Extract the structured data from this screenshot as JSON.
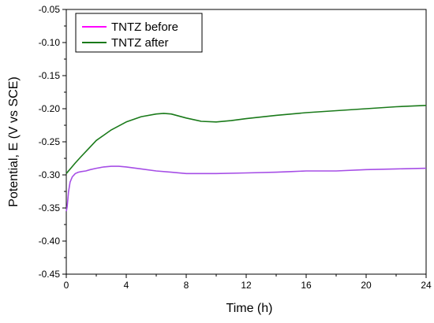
{
  "chart_data": {
    "type": "line",
    "title": "",
    "xlabel": "Time (h)",
    "ylabel": "Potential, E (V vs SCE)",
    "xlim": [
      0,
      24
    ],
    "ylim": [
      -0.45,
      -0.05
    ],
    "xticks": [
      0,
      4,
      8,
      12,
      16,
      20,
      24
    ],
    "xtick_labels": [
      "0",
      "4",
      "8",
      "12",
      "16",
      "20",
      "24"
    ],
    "yticks": [
      -0.45,
      -0.4,
      -0.35,
      -0.3,
      -0.25,
      -0.2,
      -0.15,
      -0.1,
      -0.05
    ],
    "ytick_labels": [
      "-0.45",
      "-0.40",
      "-0.35",
      "-0.30",
      "-0.25",
      "-0.20",
      "-0.15",
      "-0.10",
      "-0.05"
    ],
    "grid": false,
    "legend_position": "top-left",
    "series": [
      {
        "name": "TNTZ before",
        "legend_color": "#ff00ff",
        "color": "#a64ee6",
        "x": [
          0,
          0.05,
          0.1,
          0.15,
          0.25,
          0.4,
          0.6,
          0.8,
          1.0,
          1.3,
          1.6,
          2.0,
          2.5,
          3.0,
          3.5,
          4.0,
          5.0,
          6.0,
          7.0,
          8.0,
          9.0,
          10.0,
          12.0,
          14.0,
          15.0,
          16.0,
          17.0,
          18.0,
          20.0,
          22.0,
          24.0
        ],
        "y": [
          -0.355,
          -0.349,
          -0.338,
          -0.326,
          -0.311,
          -0.303,
          -0.298,
          -0.296,
          -0.295,
          -0.294,
          -0.292,
          -0.29,
          -0.288,
          -0.287,
          -0.287,
          -0.288,
          -0.291,
          -0.294,
          -0.296,
          -0.298,
          -0.298,
          -0.298,
          -0.297,
          -0.296,
          -0.295,
          -0.294,
          -0.294,
          -0.294,
          -0.292,
          -0.291,
          -0.29
        ]
      },
      {
        "name": "TNTZ after",
        "legend_color": "#1a7a1a",
        "color": "#1a7a1a",
        "x": [
          0,
          0.3,
          0.6,
          1.0,
          1.5,
          2.0,
          2.5,
          3.0,
          4.0,
          5.0,
          6.0,
          6.5,
          7.0,
          8.0,
          9.0,
          10.0,
          11.0,
          12.0,
          14.0,
          16.0,
          18.0,
          20.0,
          22.0,
          24.0
        ],
        "y": [
          -0.298,
          -0.29,
          -0.282,
          -0.272,
          -0.26,
          -0.248,
          -0.24,
          -0.232,
          -0.22,
          -0.212,
          -0.208,
          -0.207,
          -0.208,
          -0.214,
          -0.219,
          -0.22,
          -0.218,
          -0.215,
          -0.21,
          -0.206,
          -0.203,
          -0.2,
          -0.197,
          -0.195
        ]
      }
    ]
  }
}
